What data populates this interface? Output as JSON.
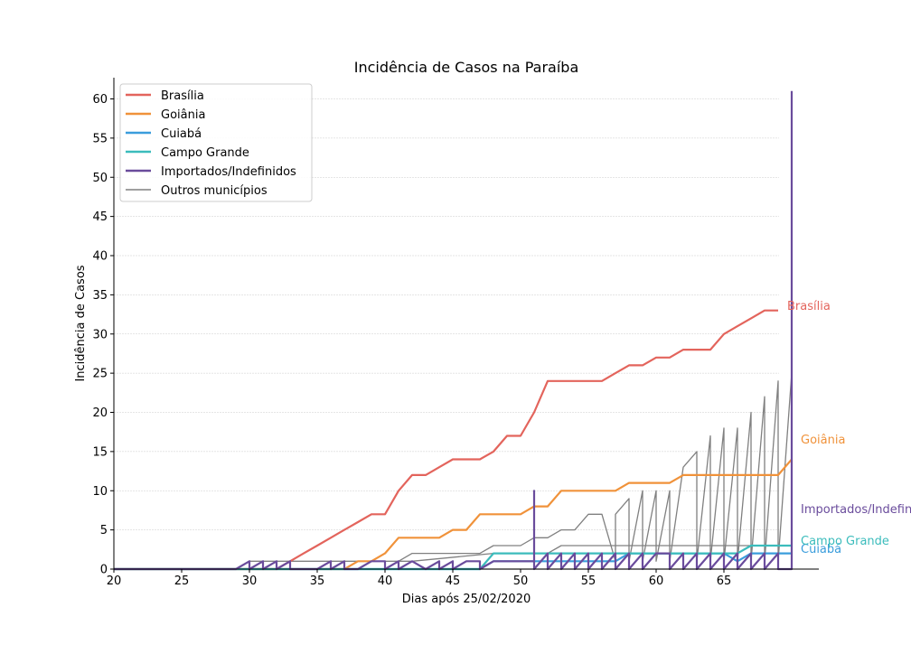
{
  "chart_data": {
    "type": "line",
    "title": "Incidência de Casos na Paraíba",
    "xlabel": "Dias após 25/02/2020",
    "ylabel": "Incidência de Casos",
    "xlim": [
      20,
      72
    ],
    "ylim": [
      0,
      63
    ],
    "x_ticks": [
      20,
      25,
      30,
      35,
      40,
      45,
      50,
      55,
      60,
      65
    ],
    "y_ticks": [
      0,
      5,
      10,
      15,
      20,
      25,
      30,
      35,
      40,
      45,
      50,
      55,
      60
    ],
    "grid": "horizontal",
    "legend_position": "top-left",
    "series": [
      {
        "name": "Brasília",
        "color": "#e3645c",
        "end_label": "Brasília",
        "x": [
          20,
          21,
          22,
          23,
          24,
          25,
          26,
          27,
          28,
          29,
          30,
          31,
          32,
          33,
          34,
          35,
          36,
          37,
          38,
          39,
          40,
          41,
          42,
          43,
          44,
          45,
          46,
          47,
          48,
          49,
          50,
          51,
          52,
          53,
          54,
          55,
          56,
          57,
          58,
          59,
          60,
          61,
          62,
          63,
          64,
          65,
          66,
          67,
          68,
          69
        ],
        "y": [
          0,
          0,
          0,
          0,
          0,
          0,
          0,
          0,
          0,
          0,
          0,
          0,
          0,
          1,
          2,
          3,
          4,
          5,
          6,
          7,
          7,
          10,
          12,
          12,
          13,
          14,
          14,
          14,
          15,
          17,
          17,
          20,
          24,
          24,
          24,
          24,
          24,
          25,
          26,
          26,
          27,
          27,
          28,
          28,
          28,
          30,
          31,
          32,
          33,
          33
        ]
      },
      {
        "name": "Goiânia",
        "color": "#f0923a",
        "end_label": "Goiânia",
        "x": [
          20,
          21,
          22,
          23,
          24,
          25,
          26,
          27,
          28,
          29,
          30,
          31,
          32,
          33,
          34,
          35,
          36,
          37,
          38,
          39,
          40,
          41,
          42,
          43,
          44,
          45,
          46,
          47,
          48,
          49,
          50,
          51,
          52,
          53,
          54,
          55,
          56,
          57,
          58,
          59,
          60,
          61,
          62,
          63,
          64,
          65,
          66,
          67,
          68,
          69,
          70
        ],
        "y": [
          0,
          0,
          0,
          0,
          0,
          0,
          0,
          0,
          0,
          0,
          0,
          0,
          0,
          0,
          0,
          0,
          0,
          0,
          1,
          1,
          2,
          4,
          4,
          4,
          4,
          5,
          5,
          7,
          7,
          7,
          7,
          8,
          8,
          10,
          10,
          10,
          10,
          10,
          11,
          11,
          11,
          11,
          12,
          12,
          12,
          12,
          12,
          12,
          12,
          12,
          14
        ]
      },
      {
        "name": "Cuiabá",
        "color": "#3a9ddc",
        "end_label": "Cuiabá",
        "x": [
          20,
          47,
          48,
          49,
          50,
          51,
          52,
          53,
          54,
          55,
          56,
          57,
          58,
          59,
          60,
          61,
          62,
          63,
          64,
          65,
          66,
          67,
          68,
          69,
          70
        ],
        "y": [
          0,
          0,
          1,
          1,
          1,
          1,
          1,
          1,
          1,
          1,
          1,
          1,
          2,
          2,
          2,
          2,
          2,
          2,
          2,
          2,
          1,
          2,
          2,
          2,
          2
        ]
      },
      {
        "name": "Campo Grande",
        "color": "#3bbcbc",
        "end_label": "Campo Grande",
        "x": [
          20,
          47,
          48,
          49,
          50,
          51,
          52,
          53,
          54,
          55,
          56,
          57,
          58,
          59,
          60,
          61,
          62,
          63,
          64,
          65,
          66,
          67,
          68,
          69,
          70
        ],
        "y": [
          0,
          0,
          2,
          2,
          2,
          2,
          2,
          2,
          2,
          2,
          2,
          2,
          2,
          2,
          2,
          2,
          2,
          2,
          2,
          2,
          2,
          3,
          3,
          3,
          3
        ]
      },
      {
        "name": "Importados/Indefinidos",
        "color": "#6a4c9c",
        "end_label": "Importados/Indefinidos",
        "x": [
          20,
          29,
          30,
          30,
          31,
          31,
          32,
          32,
          33,
          33,
          34,
          35,
          36,
          36,
          37,
          37,
          38,
          39,
          40,
          40,
          41,
          41,
          42,
          43,
          44,
          44,
          45,
          45,
          46,
          47,
          47,
          48,
          49,
          50,
          51,
          51,
          51,
          52,
          52,
          53,
          53,
          54,
          54,
          55,
          55,
          56,
          56,
          57,
          57,
          58,
          58,
          59,
          59,
          60,
          61,
          61,
          62,
          62,
          63,
          63,
          64,
          64,
          65,
          65,
          66,
          66,
          67,
          67,
          68,
          68,
          69,
          69,
          70,
          70
        ],
        "y": [
          0,
          0,
          1,
          0,
          1,
          0,
          1,
          0,
          1,
          0,
          0,
          0,
          1,
          0,
          1,
          0,
          0,
          1,
          1,
          0,
          1,
          0,
          1,
          0,
          1,
          0,
          1,
          0,
          1,
          1,
          0,
          1,
          1,
          1,
          1,
          10,
          0,
          2,
          0,
          2,
          0,
          2,
          0,
          2,
          0,
          2,
          0,
          2,
          0,
          2,
          0,
          2,
          0,
          2,
          2,
          0,
          2,
          0,
          2,
          0,
          2,
          0,
          2,
          0,
          2,
          0,
          2,
          0,
          2,
          0,
          2,
          0,
          0,
          61
        ]
      },
      {
        "name": "Outros municípios",
        "color": "#808080",
        "end_label": "",
        "lines": [
          {
            "x": [
              20,
              40,
              41,
              42,
              43,
              44,
              45,
              46,
              47,
              48,
              49,
              50,
              51,
              52,
              53,
              54,
              55,
              56,
              57,
              57,
              58,
              58,
              59,
              59,
              60,
              60,
              61,
              61,
              62,
              63,
              63,
              64,
              64,
              65,
              65,
              66,
              66,
              67,
              67,
              68,
              68,
              69,
              69,
              70
            ],
            "y": [
              0,
              0,
              1,
              2,
              2,
              2,
              2,
              2,
              2,
              3,
              3,
              3,
              4,
              4,
              5,
              5,
              7,
              7,
              1,
              7,
              9,
              1,
              10,
              1,
              10,
              1,
              10,
              1,
              13,
              15,
              1,
              17,
              1,
              18,
              1,
              18,
              1,
              20,
              1,
              22,
              1,
              24,
              1,
              25
            ]
          },
          {
            "x": [
              20,
              29,
              30,
              41,
              42,
              48,
              49,
              52,
              53,
              58,
              59,
              70
            ],
            "y": [
              0,
              0,
              1,
              1,
              1,
              2,
              2,
              2,
              3,
              3,
              3,
              3
            ]
          },
          {
            "x": [
              20,
              70
            ],
            "y": [
              0,
              0
            ]
          }
        ]
      }
    ]
  }
}
